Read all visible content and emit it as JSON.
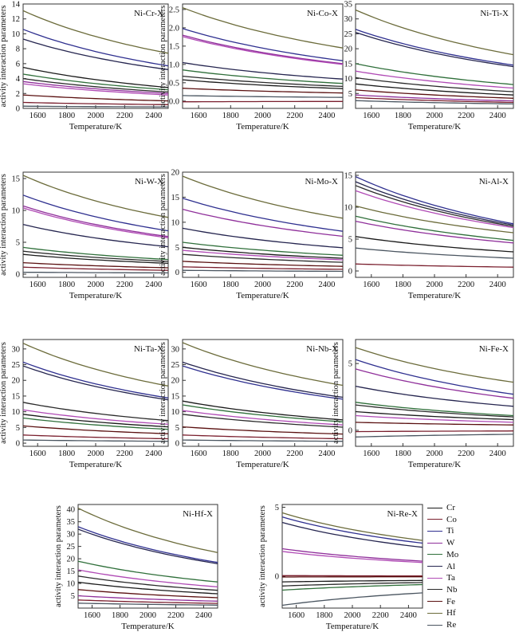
{
  "colors": {
    "Cr": "#1a1a1a",
    "Co": "#7a1f2e",
    "Ti": "#2e2f8f",
    "W": "#8f2f9a",
    "Mo": "#2f6f3a",
    "Al": "#25254f",
    "Ta": "#b04ab5",
    "Nb": "#2a2a2a",
    "Fe": "#5a1010",
    "Hf": "#6b6b3a",
    "Re": "#4a5560"
  },
  "legend": {
    "items": [
      {
        "key": "Cr",
        "label": "Cr"
      },
      {
        "key": "Co",
        "label": "Co"
      },
      {
        "key": "Ti",
        "label": "Ti"
      },
      {
        "key": "W",
        "label": "W"
      },
      {
        "key": "Mo",
        "label": "Mo"
      },
      {
        "key": "Al",
        "label": "Al"
      },
      {
        "key": "Ta",
        "label": "Ta"
      },
      {
        "key": "Nb",
        "label": "Nb"
      },
      {
        "key": "Fe",
        "label": "Fe"
      },
      {
        "key": "Hf",
        "label": "Hf"
      },
      {
        "key": "Re",
        "label": "Re"
      }
    ]
  },
  "chart_data": [
    {
      "type": "line",
      "title": "Ni-Cr-X",
      "xlabel": "Temperature/K",
      "ylabel": "activity interaction parameters",
      "xlim": [
        1500,
        2500
      ],
      "ylim": [
        0,
        14
      ],
      "xticks": [
        1600,
        1800,
        2000,
        2200,
        2400
      ],
      "yticks": [
        0,
        2,
        4,
        6,
        8,
        10,
        12,
        14
      ],
      "series": [
        {
          "key": "Hf",
          "name": "Hf",
          "y0": 13.1,
          "y1": 7.4
        },
        {
          "key": "Ti",
          "name": "Ti",
          "y0": 10.6,
          "y1": 5.7
        },
        {
          "key": "Al",
          "name": "Al",
          "y0": 9.3,
          "y1": 5.2
        },
        {
          "key": "Cr",
          "name": "Cr",
          "y0": 5.5,
          "y1": 2.8
        },
        {
          "key": "Mo",
          "name": "Mo",
          "y0": 4.6,
          "y1": 2.5
        },
        {
          "key": "Nb",
          "name": "Nb",
          "y0": 4.0,
          "y1": 2.2
        },
        {
          "key": "W",
          "name": "W",
          "y0": 3.6,
          "y1": 2.0
        },
        {
          "key": "Ta",
          "name": "Ta",
          "y0": 3.3,
          "y1": 1.8
        },
        {
          "key": "Fe",
          "name": "Fe",
          "y0": 1.8,
          "y1": 1.0
        },
        {
          "key": "Co",
          "name": "Co",
          "y0": 0.8,
          "y1": 0.5
        },
        {
          "key": "Re",
          "name": "Re",
          "y0": 0.3,
          "y1": 0.2
        }
      ]
    },
    {
      "type": "line",
      "title": "Ni-Co-X",
      "xlabel": "Temperature/K",
      "ylabel": "activity interaction parameters",
      "xlim": [
        1500,
        2500
      ],
      "ylim": [
        -0.2,
        2.65
      ],
      "xticks": [
        1600,
        1800,
        2000,
        2200,
        2400
      ],
      "yticks": [
        0.0,
        0.5,
        1.0,
        1.5,
        2.0,
        2.5
      ],
      "series": [
        {
          "key": "Hf",
          "name": "Hf",
          "y0": 2.55,
          "y1": 1.45
        },
        {
          "key": "Ti",
          "name": "Ti",
          "y0": 1.98,
          "y1": 1.1
        },
        {
          "key": "W",
          "name": "W",
          "y0": 1.8,
          "y1": 1.02
        },
        {
          "key": "Ta",
          "name": "Ta",
          "y0": 1.76,
          "y1": 1.0
        },
        {
          "key": "Al",
          "name": "Al",
          "y0": 1.05,
          "y1": 0.6
        },
        {
          "key": "Mo",
          "name": "Mo",
          "y0": 0.85,
          "y1": 0.48
        },
        {
          "key": "Nb",
          "name": "Nb",
          "y0": 0.68,
          "y1": 0.4
        },
        {
          "key": "Cr",
          "name": "Cr",
          "y0": 0.58,
          "y1": 0.34
        },
        {
          "key": "Fe",
          "name": "Fe",
          "y0": 0.35,
          "y1": 0.22
        },
        {
          "key": "Re",
          "name": "Re",
          "y0": 0.15,
          "y1": 0.1
        },
        {
          "key": "Co",
          "name": "Co",
          "y0": -0.02,
          "y1": -0.01
        }
      ]
    },
    {
      "type": "line",
      "title": "Ni-Ti-X",
      "xlabel": "Temperature/K",
      "ylabel": "",
      "xlim": [
        1500,
        2500
      ],
      "ylim": [
        0,
        35
      ],
      "xticks": [
        1600,
        1800,
        2000,
        2200,
        2400
      ],
      "yticks": [
        5,
        10,
        15,
        20,
        25,
        30,
        35
      ],
      "series": [
        {
          "key": "Hf",
          "name": "Hf",
          "y0": 33.0,
          "y1": 18.0
        },
        {
          "key": "Ti",
          "name": "Ti",
          "y0": 26.5,
          "y1": 14.5
        },
        {
          "key": "Al",
          "name": "Al",
          "y0": 25.5,
          "y1": 14.0
        },
        {
          "key": "Mo",
          "name": "Mo",
          "y0": 15.0,
          "y1": 8.0
        },
        {
          "key": "Ta",
          "name": "Ta",
          "y0": 12.5,
          "y1": 6.8
        },
        {
          "key": "Nb",
          "name": "Nb",
          "y0": 10.3,
          "y1": 5.6
        },
        {
          "key": "Cr",
          "name": "Cr",
          "y0": 8.2,
          "y1": 4.5
        },
        {
          "key": "Fe",
          "name": "Fe",
          "y0": 6.2,
          "y1": 3.4
        },
        {
          "key": "W",
          "name": "W",
          "y0": 4.5,
          "y1": 2.5
        },
        {
          "key": "Co",
          "name": "Co",
          "y0": 3.6,
          "y1": 2.0
        },
        {
          "key": "Re",
          "name": "Re",
          "y0": 2.6,
          "y1": 1.5
        }
      ]
    },
    {
      "type": "line",
      "title": "Ni-W-X",
      "xlabel": "Temperature/K",
      "ylabel": "activity interaction parameters",
      "xlim": [
        1500,
        2500
      ],
      "ylim": [
        -0.5,
        16
      ],
      "xticks": [
        1600,
        1800,
        2000,
        2200,
        2400
      ],
      "yticks": [
        0,
        5,
        10,
        15
      ],
      "series": [
        {
          "key": "Hf",
          "name": "Hf",
          "y0": 15.5,
          "y1": 8.9
        },
        {
          "key": "Ti",
          "name": "Ti",
          "y0": 12.4,
          "y1": 6.8
        },
        {
          "key": "W",
          "name": "W",
          "y0": 10.7,
          "y1": 5.9
        },
        {
          "key": "Ta",
          "name": "Ta",
          "y0": 10.4,
          "y1": 5.7
        },
        {
          "key": "Al",
          "name": "Al",
          "y0": 7.8,
          "y1": 4.3
        },
        {
          "key": "Mo",
          "name": "Mo",
          "y0": 4.2,
          "y1": 2.3
        },
        {
          "key": "Nb",
          "name": "Nb",
          "y0": 3.6,
          "y1": 2.0
        },
        {
          "key": "Cr",
          "name": "Cr",
          "y0": 3.1,
          "y1": 1.7
        },
        {
          "key": "Fe",
          "name": "Fe",
          "y0": 1.8,
          "y1": 1.0
        },
        {
          "key": "Co",
          "name": "Co",
          "y0": 1.1,
          "y1": 0.6
        },
        {
          "key": "Re",
          "name": "Re",
          "y0": 0.3,
          "y1": 0.2
        }
      ]
    },
    {
      "type": "line",
      "title": "Ni-Mo-X",
      "xlabel": "Temperature/K",
      "ylabel": "activity interaction parameters",
      "xlim": [
        1500,
        2500
      ],
      "ylim": [
        -1,
        20
      ],
      "xticks": [
        1600,
        1800,
        2000,
        2200,
        2400
      ],
      "yticks": [
        0,
        5,
        10,
        15,
        20
      ],
      "series": [
        {
          "key": "Hf",
          "name": "Hf",
          "y0": 19.2,
          "y1": 10.8
        },
        {
          "key": "Ti",
          "name": "Ti",
          "y0": 14.8,
          "y1": 8.2
        },
        {
          "key": "W",
          "name": "W",
          "y0": 12.6,
          "y1": 7.2
        },
        {
          "key": "Al",
          "name": "Al",
          "y0": 8.8,
          "y1": 4.9
        },
        {
          "key": "Mo",
          "name": "Mo",
          "y0": 6.0,
          "y1": 3.4
        },
        {
          "key": "Cr",
          "name": "Cr",
          "y0": 5.0,
          "y1": 2.8
        },
        {
          "key": "Ta",
          "name": "Ta",
          "y0": 4.4,
          "y1": 2.5
        },
        {
          "key": "Nb",
          "name": "Nb",
          "y0": 3.6,
          "y1": 2.0
        },
        {
          "key": "Fe",
          "name": "Fe",
          "y0": 2.2,
          "y1": 1.2
        },
        {
          "key": "Co",
          "name": "Co",
          "y0": 1.1,
          "y1": 0.6
        },
        {
          "key": "Re",
          "name": "Re",
          "y0": 0.4,
          "y1": 0.2
        }
      ]
    },
    {
      "type": "line",
      "title": "Ni-Al-X",
      "xlabel": "Temperature/K",
      "ylabel": "",
      "xlim": [
        1500,
        2500
      ],
      "ylim": [
        -1,
        15.5
      ],
      "xticks": [
        1600,
        1800,
        2000,
        2200,
        2400
      ],
      "yticks": [
        0,
        5,
        10,
        15
      ],
      "series": [
        {
          "key": "Ti",
          "name": "Ti",
          "y0": 14.8,
          "y1": 7.4
        },
        {
          "key": "Al",
          "name": "Al",
          "y0": 14.0,
          "y1": 7.2
        },
        {
          "key": "Nb",
          "name": "Nb",
          "y0": 13.4,
          "y1": 7.0
        },
        {
          "key": "Ta",
          "name": "Ta",
          "y0": 12.6,
          "y1": 6.8
        },
        {
          "key": "Hf",
          "name": "Hf",
          "y0": 10.2,
          "y1": 6.0
        },
        {
          "key": "Mo",
          "name": "Mo",
          "y0": 8.6,
          "y1": 4.8
        },
        {
          "key": "W",
          "name": "W",
          "y0": 7.8,
          "y1": 4.4
        },
        {
          "key": "Cr",
          "name": "Cr",
          "y0": 5.4,
          "y1": 3.0
        },
        {
          "key": "Re",
          "name": "Re",
          "y0": 3.6,
          "y1": 2.0
        },
        {
          "key": "Co",
          "name": "Co",
          "y0": 1.1,
          "y1": 0.6
        }
      ]
    },
    {
      "type": "line",
      "title": "Ni-Ta-X",
      "xlabel": "Temperature/K",
      "ylabel": "activity interaction parameters",
      "xlim": [
        1500,
        2500
      ],
      "ylim": [
        -1,
        33
      ],
      "xticks": [
        1600,
        1800,
        2000,
        2200,
        2400
      ],
      "yticks": [
        0,
        5,
        10,
        15,
        20,
        25,
        30
      ],
      "series": [
        {
          "key": "Hf",
          "name": "Hf",
          "y0": 31.8,
          "y1": 18.2
        },
        {
          "key": "Ti",
          "name": "Ti",
          "y0": 25.8,
          "y1": 14.4
        },
        {
          "key": "Al",
          "name": "Al",
          "y0": 24.6,
          "y1": 13.8
        },
        {
          "key": "Nb",
          "name": "Nb",
          "y0": 13.0,
          "y1": 7.2
        },
        {
          "key": "Ta",
          "name": "Ta",
          "y0": 10.6,
          "y1": 6.0
        },
        {
          "key": "Cr",
          "name": "Cr",
          "y0": 9.2,
          "y1": 5.2
        },
        {
          "key": "Mo",
          "name": "Mo",
          "y0": 8.0,
          "y1": 4.4
        },
        {
          "key": "Fe",
          "name": "Fe",
          "y0": 5.5,
          "y1": 3.0
        },
        {
          "key": "Co",
          "name": "Co",
          "y0": 2.6,
          "y1": 1.4
        },
        {
          "key": "Re",
          "name": "Re",
          "y0": 1.0,
          "y1": 0.6
        }
      ]
    },
    {
      "type": "line",
      "title": "Ni-Nb-X",
      "xlabel": "Temperature/K",
      "ylabel": "activity interaction parameters",
      "xlim": [
        1500,
        2500
      ],
      "ylim": [
        -1,
        33
      ],
      "xticks": [
        1600,
        1800,
        2000,
        2200,
        2400
      ],
      "yticks": [
        0,
        5,
        10,
        15,
        20,
        25,
        30
      ],
      "series": [
        {
          "key": "Hf",
          "name": "Hf",
          "y0": 32.0,
          "y1": 18.4
        },
        {
          "key": "Al",
          "name": "Al",
          "y0": 25.8,
          "y1": 14.6
        },
        {
          "key": "Ti",
          "name": "Ti",
          "y0": 24.6,
          "y1": 14.0
        },
        {
          "key": "Cr",
          "name": "Cr",
          "y0": 13.4,
          "y1": 7.4
        },
        {
          "key": "Mo",
          "name": "Mo",
          "y0": 12.2,
          "y1": 6.8
        },
        {
          "key": "Ta",
          "name": "Ta",
          "y0": 10.4,
          "y1": 5.8
        },
        {
          "key": "Nb",
          "name": "Nb",
          "y0": 9.2,
          "y1": 5.1
        },
        {
          "key": "Fe",
          "name": "Fe",
          "y0": 5.2,
          "y1": 2.9
        },
        {
          "key": "Co",
          "name": "Co",
          "y0": 2.6,
          "y1": 1.4
        },
        {
          "key": "Re",
          "name": "Re",
          "y0": 1.0,
          "y1": 0.6
        }
      ]
    },
    {
      "type": "line",
      "title": "Ni-Fe-X",
      "xlabel": "Temperature/K",
      "ylabel": "activity interaction parameters",
      "xlim": [
        1500,
        2500
      ],
      "ylim": [
        -1.2,
        6.8
      ],
      "xticks": [
        1600,
        1800,
        2000,
        2200,
        2400
      ],
      "yticks": [
        0,
        5
      ],
      "series": [
        {
          "key": "Hf",
          "name": "Hf",
          "y0": 6.2,
          "y1": 3.6
        },
        {
          "key": "Ti",
          "name": "Ti",
          "y0": 5.3,
          "y1": 2.7
        },
        {
          "key": "W",
          "name": "W",
          "y0": 4.6,
          "y1": 2.4
        },
        {
          "key": "Al",
          "name": "Al",
          "y0": 3.3,
          "y1": 1.8
        },
        {
          "key": "Mo",
          "name": "Mo",
          "y0": 2.1,
          "y1": 1.1
        },
        {
          "key": "Nb",
          "name": "Nb",
          "y0": 1.9,
          "y1": 1.0
        },
        {
          "key": "Cr",
          "name": "Cr",
          "y0": 1.4,
          "y1": 0.8
        },
        {
          "key": "Ta",
          "name": "Ta",
          "y0": 1.1,
          "y1": 0.6
        },
        {
          "key": "Fe",
          "name": "Fe",
          "y0": 0.6,
          "y1": 0.4
        },
        {
          "key": "Co",
          "name": "Co",
          "y0": -0.1,
          "y1": -0.05
        },
        {
          "key": "Re",
          "name": "Re",
          "y0": -0.5,
          "y1": -0.3
        }
      ]
    },
    {
      "type": "line",
      "title": "Ni-Hf-X",
      "xlabel": "Temperature/K",
      "ylabel": "activity interaction parameters",
      "xlim": [
        1500,
        2500
      ],
      "ylim": [
        0,
        42
      ],
      "xticks": [
        1600,
        1800,
        2000,
        2200,
        2400
      ],
      "yticks": [
        5,
        10,
        15,
        20,
        25,
        30,
        35,
        40
      ],
      "series": [
        {
          "key": "Hf",
          "name": "Hf",
          "y0": 40.5,
          "y1": 22.5
        },
        {
          "key": "Ti",
          "name": "Ti",
          "y0": 33.0,
          "y1": 18.5
        },
        {
          "key": "Al",
          "name": "Al",
          "y0": 32.0,
          "y1": 18.0
        },
        {
          "key": "Mo",
          "name": "Mo",
          "y0": 19.0,
          "y1": 10.6
        },
        {
          "key": "Ta",
          "name": "Ta",
          "y0": 15.5,
          "y1": 8.6
        },
        {
          "key": "Nb",
          "name": "Nb",
          "y0": 13.0,
          "y1": 7.2
        },
        {
          "key": "Cr",
          "name": "Cr",
          "y0": 10.5,
          "y1": 5.8
        },
        {
          "key": "Fe",
          "name": "Fe",
          "y0": 7.5,
          "y1": 4.2
        },
        {
          "key": "W",
          "name": "W",
          "y0": 5.0,
          "y1": 2.8
        },
        {
          "key": "Co",
          "name": "Co",
          "y0": 3.3,
          "y1": 1.9
        },
        {
          "key": "Re",
          "name": "Re",
          "y0": 2.0,
          "y1": 1.2
        }
      ]
    },
    {
      "type": "line",
      "title": "Ni-Re-X",
      "xlabel": "Temperature/K",
      "ylabel": "activity interaction parameters",
      "xlim": [
        1500,
        2500
      ],
      "ylim": [
        -2.3,
        5.2
      ],
      "xticks": [
        1600,
        1800,
        2000,
        2200,
        2400
      ],
      "yticks": [
        0,
        5
      ],
      "series": [
        {
          "key": "Hf",
          "name": "Hf",
          "y0": 4.6,
          "y1": 2.6
        },
        {
          "key": "Ti",
          "name": "Ti",
          "y0": 4.3,
          "y1": 2.4
        },
        {
          "key": "Al",
          "name": "Al",
          "y0": 3.9,
          "y1": 2.1
        },
        {
          "key": "W",
          "name": "W",
          "y0": 2.0,
          "y1": 1.1
        },
        {
          "key": "Ta",
          "name": "Ta",
          "y0": 1.8,
          "y1": 1.0
        },
        {
          "key": "Co",
          "name": "Co",
          "y0": 0.05,
          "y1": 0.03
        },
        {
          "key": "Fe",
          "name": "Fe",
          "y0": -0.05,
          "y1": -0.03
        },
        {
          "key": "Cr",
          "name": "Cr",
          "y0": -0.4,
          "y1": -0.3
        },
        {
          "key": "Nb",
          "name": "Nb",
          "y0": -0.7,
          "y1": -0.45
        },
        {
          "key": "Mo",
          "name": "Mo",
          "y0": -1.0,
          "y1": -0.6
        },
        {
          "key": "Re",
          "name": "Re",
          "y0": -2.1,
          "y1": -1.2
        }
      ]
    }
  ]
}
